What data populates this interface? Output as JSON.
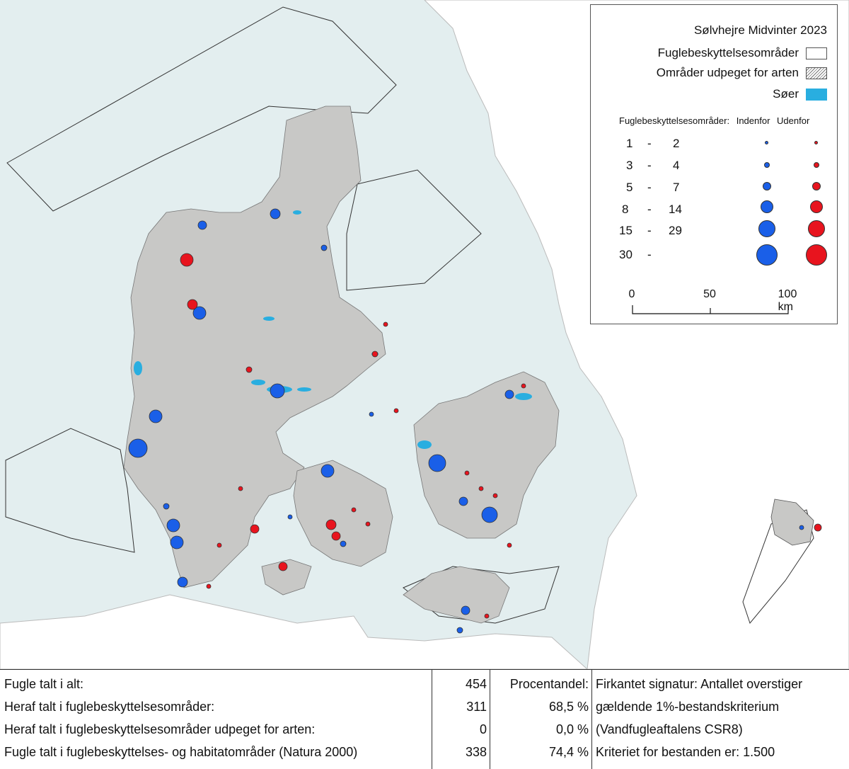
{
  "legend": {
    "title": "Sølvhejre Midvinter 2023",
    "items": [
      {
        "label": "Fuglebeskyttelsesområder",
        "swatch": "white"
      },
      {
        "label": "Områder udpeget for arten",
        "swatch": "hatch"
      },
      {
        "label": "Søer",
        "swatch": "lake"
      }
    ],
    "header": {
      "label": "Fuglebeskyttelsesområder:",
      "inside": "Indenfor",
      "outside": "Udenfor"
    },
    "classes": [
      {
        "from": "1",
        "dash": "-",
        "to": "2"
      },
      {
        "from": "3",
        "dash": "-",
        "to": "4"
      },
      {
        "from": "5",
        "dash": "-",
        "to": "7"
      },
      {
        "from": "8",
        "dash": "-",
        "to": "14"
      },
      {
        "from": "15",
        "dash": "-",
        "to": "29"
      },
      {
        "from": "30",
        "dash": "-",
        "to": ""
      }
    ],
    "scale": {
      "ticks": [
        "0",
        "50",
        "100 km"
      ]
    }
  },
  "colors": {
    "sea": "#e3eeef",
    "land": "#c8c8c6",
    "lake": "#29aee0",
    "inside": "#1a5fe8",
    "outside": "#e8141e"
  },
  "stats": {
    "rows": [
      {
        "label": "Fugle talt i alt:",
        "value": "454",
        "pct": "Procentandel:",
        "note": "Firkantet signatur: Antallet overstiger"
      },
      {
        "label": "Heraf talt i fuglebeskyttelsesområder:",
        "value": "311",
        "pct": "68,5 %",
        "note": "gældende 1%-bestandskriterium"
      },
      {
        "label": "Heraf talt i fuglebeskyttelsesområder udpeget for arten:",
        "value": "0",
        "pct": "0,0 %",
        "note": "(Vandfugleaftalens CSR8)"
      },
      {
        "label": "Fugle talt i fuglebeskyttelses- og habitatområder (Natura 2000)",
        "value": "338",
        "pct": "74,4 %",
        "note": "Kriteriet for bestanden er: 1.500"
      }
    ]
  }
}
